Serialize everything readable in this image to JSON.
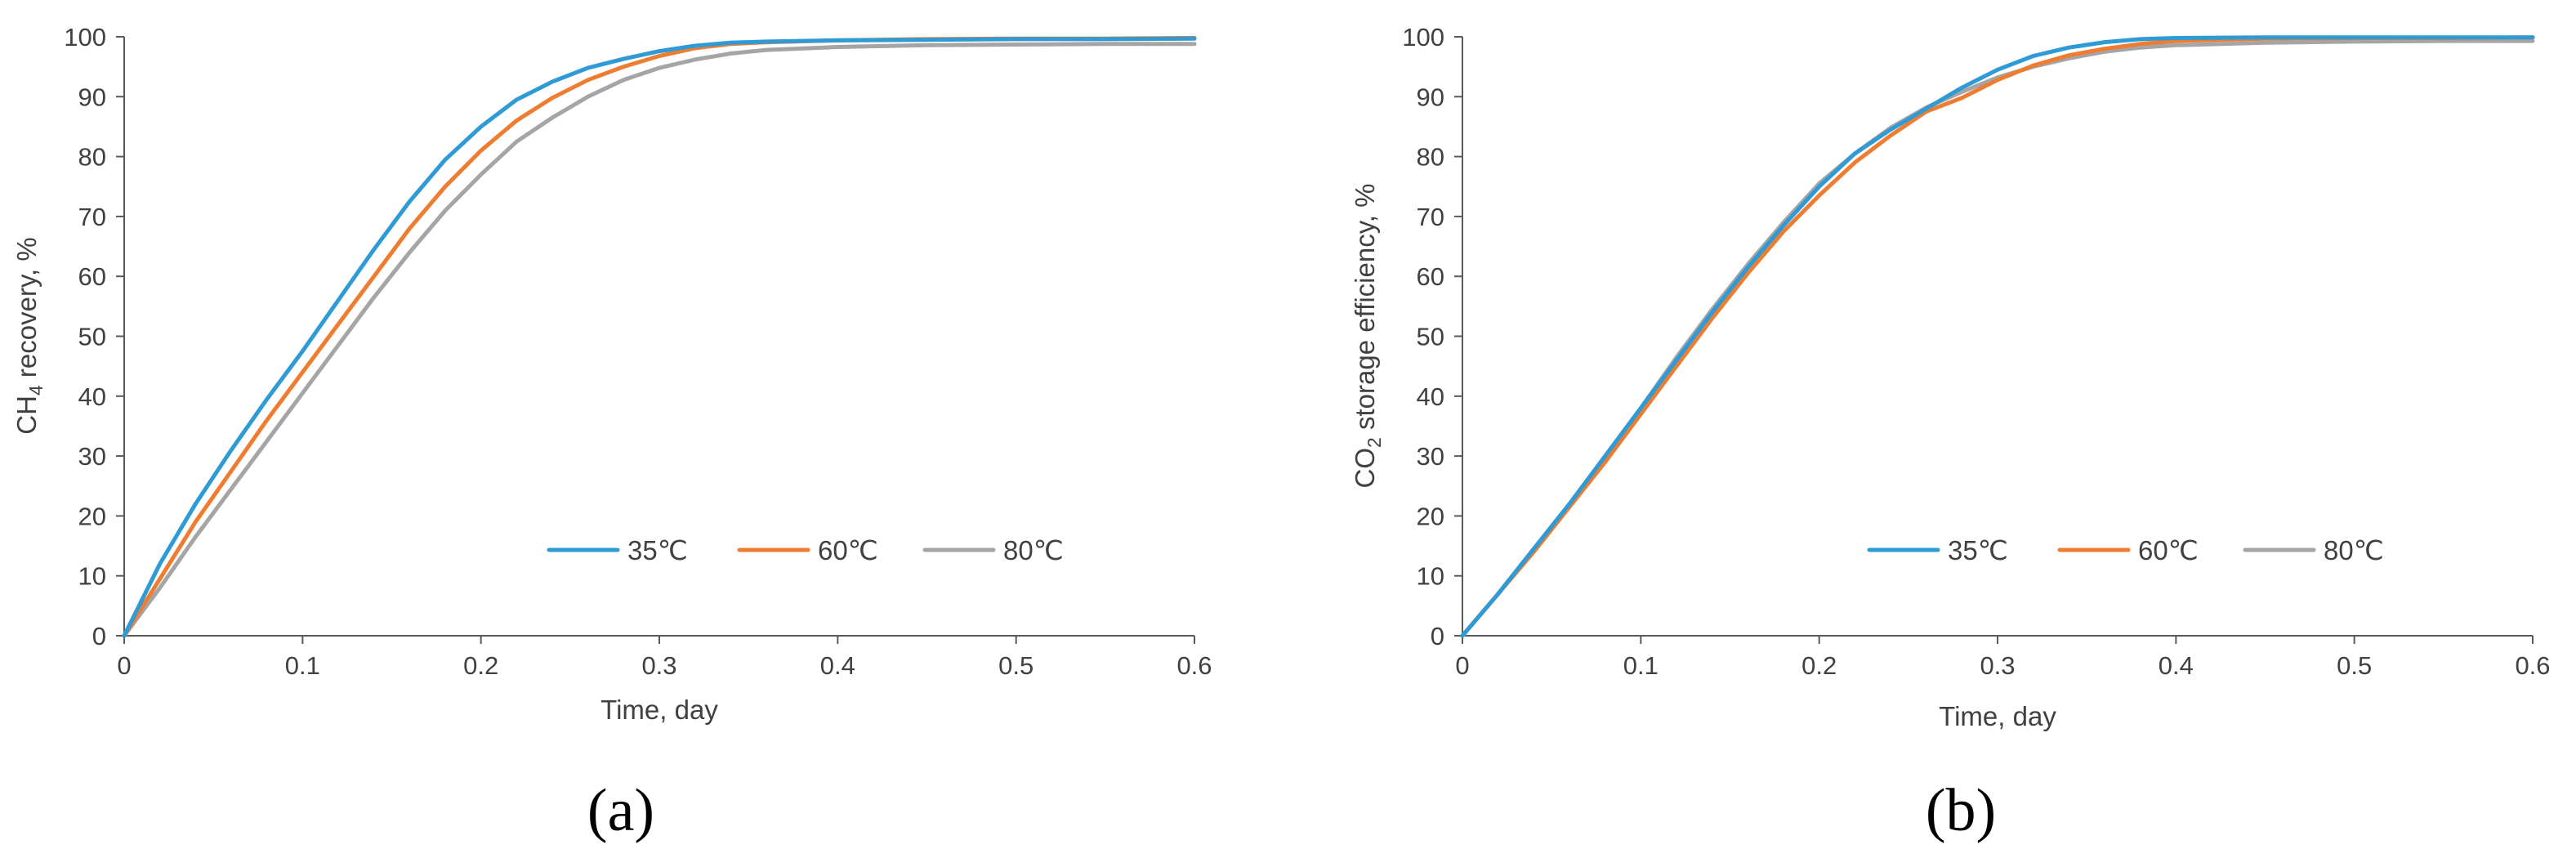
{
  "chart_data": [
    {
      "type": "line",
      "panel_label": "(a)",
      "xlabel": "Time, day",
      "ylabel_parts": [
        "CH",
        "4",
        " recovery, %"
      ],
      "xlim": [
        0,
        0.6
      ],
      "ylim": [
        0,
        100
      ],
      "xticks": [
        0,
        0.1,
        0.2,
        0.3,
        0.4,
        0.5,
        0.6
      ],
      "xtick_labels": [
        "0",
        "0.1",
        "0.2",
        "0.3",
        "0.4",
        "0.5",
        "0.6"
      ],
      "yticks": [
        0,
        10,
        20,
        30,
        40,
        50,
        60,
        70,
        80,
        90,
        100
      ],
      "ytick_labels": [
        "0",
        "10",
        "20",
        "30",
        "40",
        "50",
        "60",
        "70",
        "80",
        "90",
        "100"
      ],
      "grid": false,
      "legend_position": "bottom-right",
      "series": [
        {
          "name": "35℃",
          "color": "#2E9AD6",
          "x": [
            0,
            0.02,
            0.04,
            0.06,
            0.08,
            0.1,
            0.12,
            0.14,
            0.16,
            0.18,
            0.2,
            0.22,
            0.24,
            0.26,
            0.28,
            0.3,
            0.32,
            0.34,
            0.36,
            0.4,
            0.45,
            0.5,
            0.55,
            0.6
          ],
          "y": [
            0,
            12,
            22,
            31,
            39.5,
            47.5,
            56,
            64.5,
            72.5,
            79.5,
            85,
            89.5,
            92.5,
            94.8,
            96.3,
            97.6,
            98.5,
            99.0,
            99.2,
            99.4,
            99.5,
            99.6,
            99.6,
            99.7
          ]
        },
        {
          "name": "60℃",
          "color": "#EF7D31",
          "x": [
            0,
            0.02,
            0.04,
            0.06,
            0.08,
            0.1,
            0.12,
            0.14,
            0.16,
            0.18,
            0.2,
            0.22,
            0.24,
            0.26,
            0.28,
            0.3,
            0.32,
            0.34,
            0.36,
            0.4,
            0.45,
            0.5,
            0.55,
            0.6
          ],
          "y": [
            0,
            9.5,
            19,
            27.5,
            36,
            44,
            52,
            60,
            68,
            75,
            81,
            86,
            89.8,
            92.8,
            95.0,
            96.8,
            98.1,
            98.8,
            99.1,
            99.4,
            99.6,
            99.7,
            99.7,
            99.8
          ]
        },
        {
          "name": "80℃",
          "color": "#A5A5A5",
          "x": [
            0,
            0.02,
            0.04,
            0.06,
            0.08,
            0.1,
            0.12,
            0.14,
            0.16,
            0.18,
            0.2,
            0.22,
            0.24,
            0.26,
            0.28,
            0.3,
            0.32,
            0.34,
            0.36,
            0.4,
            0.45,
            0.5,
            0.55,
            0.6
          ],
          "y": [
            0,
            8,
            16.5,
            24.5,
            32.5,
            40.5,
            48.5,
            56.5,
            64,
            71,
            77,
            82.5,
            86.5,
            90,
            92.8,
            94.8,
            96.2,
            97.2,
            97.8,
            98.3,
            98.6,
            98.7,
            98.8,
            98.8
          ]
        }
      ]
    },
    {
      "type": "line",
      "panel_label": "(b)",
      "xlabel": "Time, day",
      "ylabel_parts": [
        "CO",
        "2",
        " storage efficiency, %"
      ],
      "xlim": [
        0,
        0.6
      ],
      "ylim": [
        0,
        100
      ],
      "xticks": [
        0,
        0.1,
        0.2,
        0.3,
        0.4,
        0.5,
        0.6
      ],
      "xtick_labels": [
        "0",
        "0.1",
        "0.2",
        "0.3",
        "0.4",
        "0.5",
        "0.6"
      ],
      "yticks": [
        0,
        10,
        20,
        30,
        40,
        50,
        60,
        70,
        80,
        90,
        100
      ],
      "ytick_labels": [
        "0",
        "10",
        "20",
        "30",
        "40",
        "50",
        "60",
        "70",
        "80",
        "90",
        "100"
      ],
      "grid": false,
      "legend_position": "bottom-right",
      "series": [
        {
          "name": "35℃",
          "color": "#2E9AD6",
          "x": [
            0,
            0.02,
            0.04,
            0.06,
            0.08,
            0.1,
            0.12,
            0.14,
            0.16,
            0.18,
            0.2,
            0.22,
            0.24,
            0.26,
            0.28,
            0.3,
            0.32,
            0.34,
            0.36,
            0.38,
            0.4,
            0.45,
            0.5,
            0.55,
            0.6
          ],
          "y": [
            0,
            7,
            14.5,
            22,
            30,
            38,
            46,
            54,
            61.5,
            68.5,
            75,
            80.5,
            84.5,
            88,
            91.5,
            94.5,
            96.8,
            98.2,
            99.1,
            99.6,
            99.8,
            99.9,
            99.9,
            99.9,
            99.9
          ]
        },
        {
          "name": "60℃",
          "color": "#EF7D31",
          "x": [
            0,
            0.02,
            0.04,
            0.06,
            0.08,
            0.1,
            0.12,
            0.14,
            0.16,
            0.18,
            0.2,
            0.22,
            0.24,
            0.26,
            0.28,
            0.3,
            0.32,
            0.34,
            0.36,
            0.38,
            0.4,
            0.45,
            0.5,
            0.55,
            0.6
          ],
          "y": [
            0,
            7,
            14,
            21.5,
            29,
            37,
            45,
            53,
            60.5,
            67.5,
            73.5,
            79,
            83.5,
            87.5,
            89.8,
            92.8,
            95.2,
            96.9,
            98.0,
            98.8,
            99.3,
            99.7,
            99.8,
            99.8,
            99.9
          ]
        },
        {
          "name": "80℃",
          "color": "#A5A5A5",
          "x": [
            0,
            0.02,
            0.04,
            0.06,
            0.08,
            0.1,
            0.12,
            0.14,
            0.16,
            0.18,
            0.2,
            0.22,
            0.24,
            0.26,
            0.28,
            0.3,
            0.32,
            0.34,
            0.36,
            0.38,
            0.4,
            0.45,
            0.5,
            0.55,
            0.6
          ],
          "y": [
            0,
            7,
            14.5,
            22,
            30,
            38,
            46.5,
            54.5,
            62,
            69,
            75.5,
            80.5,
            84.8,
            88.2,
            90.8,
            93.2,
            95.0,
            96.4,
            97.5,
            98.2,
            98.6,
            99.0,
            99.2,
            99.3,
            99.3
          ]
        }
      ]
    }
  ]
}
